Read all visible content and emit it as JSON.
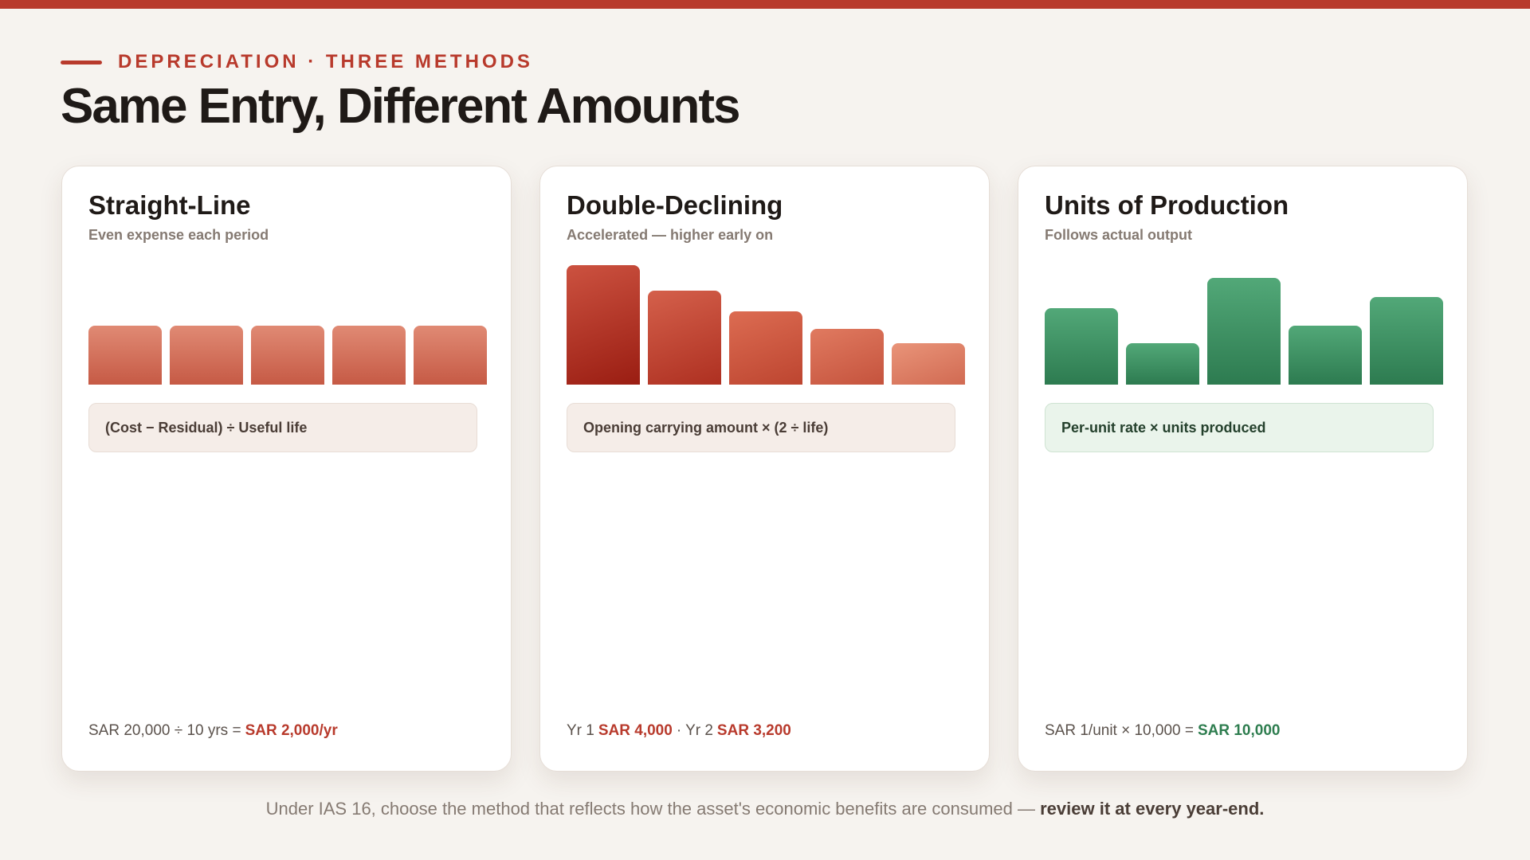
{
  "eyebrow": "DEPRECIATION · THREE METHODS",
  "title": "Same Entry, Different Amounts",
  "cards": [
    {
      "title": "Straight-Line",
      "subtitle": "Even expense each period",
      "formula": "(Cost − Residual) ÷ Useful life",
      "example": [
        "SAR 20,000 ÷ 10 yrs =",
        "SAR 2,000/yr"
      ]
    },
    {
      "title": "Double-Declining",
      "subtitle": "Accelerated — higher early on",
      "formula": "Opening carrying amount × (2 ÷ life)",
      "example": [
        "Yr 1",
        "SAR 4,000",
        "· Yr 2",
        "SAR 3,200"
      ]
    },
    {
      "title": "Units of Production",
      "subtitle": "Follows actual output",
      "formula": "Per-unit rate × units produced",
      "example": [
        "SAR 1/unit × 10,000 =",
        "SAR 10,000"
      ]
    }
  ],
  "note": [
    "Under IAS 16, choose the method that reflects how the asset's economic benefits are consumed —",
    "review it at every year-end."
  ]
}
